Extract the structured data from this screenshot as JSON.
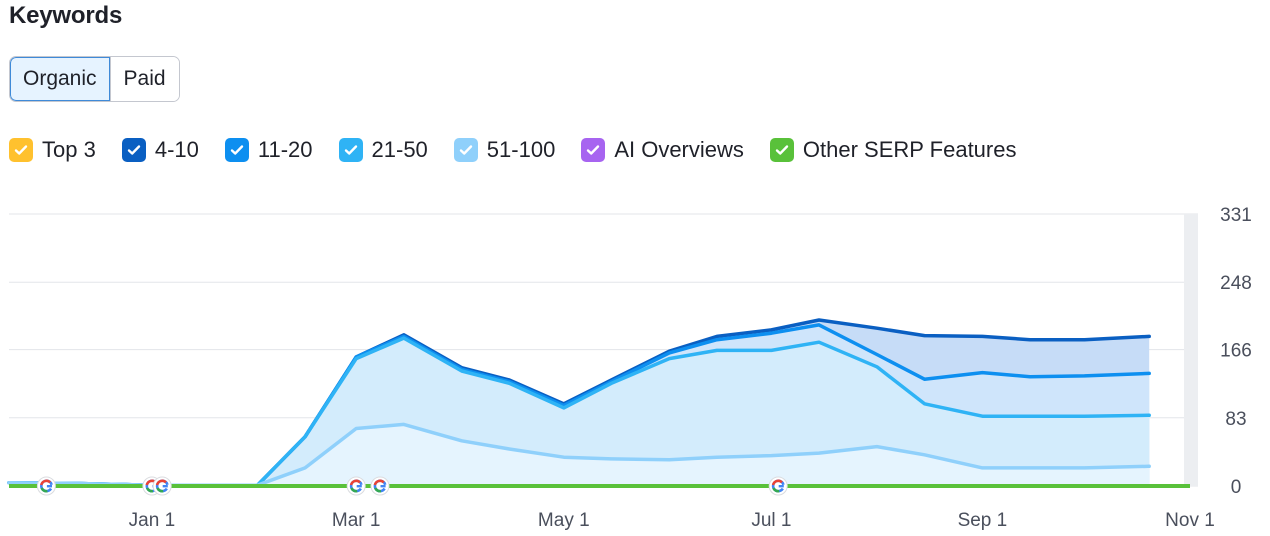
{
  "header": {
    "title": "Keywords"
  },
  "tabs": [
    {
      "label": "Organic",
      "active": true
    },
    {
      "label": "Paid",
      "active": false
    }
  ],
  "legend": [
    {
      "label": "Top 3",
      "color": "#ffc12e",
      "checked": true
    },
    {
      "label": "4-10",
      "color": "#0a5fc2",
      "checked": true
    },
    {
      "label": "11-20",
      "color": "#0d8ff0",
      "checked": true
    },
    {
      "label": "21-50",
      "color": "#2fb3f5",
      "checked": true
    },
    {
      "label": "51-100",
      "color": "#8fd0fb",
      "checked": true
    },
    {
      "label": "AI Overviews",
      "color": "#a764f0",
      "checked": true
    },
    {
      "label": "Other SERP Features",
      "color": "#59c13a",
      "checked": true
    }
  ],
  "chart_data": {
    "type": "area",
    "stacked": true,
    "x_ticks": [
      "Jan 1",
      "Mar 1",
      "May 1",
      "Jul 1",
      "Sep 1",
      "Nov 1"
    ],
    "y_ticks": [
      0,
      83,
      166,
      248,
      331
    ],
    "ylim": [
      0,
      331
    ],
    "xlim": [
      "2023-11-20",
      "2024-11-01"
    ],
    "grid": true,
    "y_axis_side": "right",
    "x": [
      "2023-11-20",
      "2023-12-10",
      "2024-01-01",
      "2024-01-20",
      "2024-02-01",
      "2024-02-15",
      "2024-03-01",
      "2024-03-15",
      "2024-04-01",
      "2024-04-15",
      "2024-05-01",
      "2024-05-15",
      "2024-06-01",
      "2024-06-15",
      "2024-07-01",
      "2024-07-15",
      "2024-08-01",
      "2024-08-15",
      "2024-09-01",
      "2024-09-15",
      "2024-10-01",
      "2024-10-20"
    ],
    "series": [
      {
        "name": "51-100",
        "color": "#8fd0fb",
        "fill": "#e5f4fe",
        "values": [
          4,
          3,
          1,
          1,
          1,
          22,
          70,
          75,
          55,
          45,
          35,
          33,
          32,
          35,
          37,
          40,
          48,
          38,
          22,
          22,
          22,
          24
        ]
      },
      {
        "name": "21-50",
        "color": "#2fb3f5",
        "fill": "#d3ecfc",
        "values": [
          4,
          3,
          1,
          1,
          1,
          60,
          155,
          180,
          140,
          125,
          95,
          125,
          155,
          165,
          165,
          175,
          145,
          100,
          85,
          85,
          85,
          86
        ]
      },
      {
        "name": "11-20",
        "color": "#0d8ff0",
        "fill": "#cfe5fb",
        "values": [
          4,
          3,
          1,
          1,
          1,
          60,
          157,
          182,
          142,
          127,
          98,
          127,
          162,
          178,
          186,
          196,
          160,
          130,
          138,
          133,
          134,
          137
        ]
      },
      {
        "name": "4-10",
        "color": "#0a5fc2",
        "fill": "#c6dcf7",
        "values": [
          4,
          3,
          1,
          1,
          1,
          60,
          157,
          184,
          144,
          129,
          100,
          129,
          164,
          182,
          190,
          202,
          192,
          183,
          182,
          178,
          178,
          182
        ]
      }
    ],
    "baseline_series": {
      "name": "Other SERP Features",
      "color": "#59c13a",
      "values": [
        0,
        0,
        0,
        0,
        0,
        0,
        0,
        0,
        0,
        0,
        0,
        0,
        0,
        0,
        0,
        0,
        0,
        0,
        0,
        0,
        0,
        0
      ]
    },
    "google_update_markers": [
      "2023-12-01",
      "2024-01-01",
      "2024-01-04",
      "2024-03-01",
      "2024-03-08",
      "2024-07-03"
    ]
  }
}
